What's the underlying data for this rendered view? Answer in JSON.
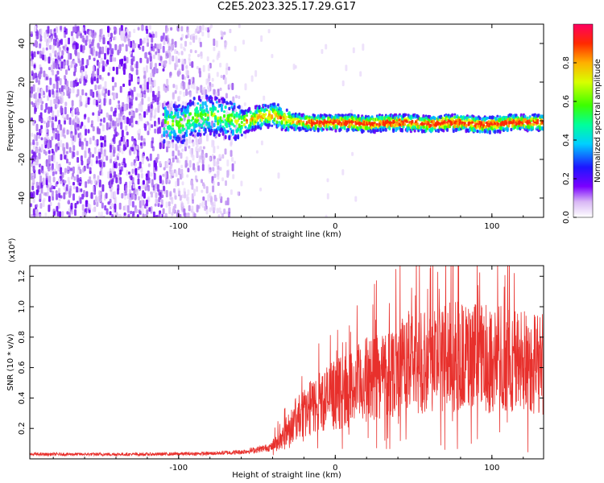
{
  "title": "C2E5.2023.325.17.29.G17",
  "chart_data": [
    {
      "type": "heatmap",
      "xlabel": "Height of straight line (km)",
      "ylabel": "Frequency (Hz)",
      "xlim": [
        -195,
        133
      ],
      "ylim": [
        -50,
        50
      ],
      "xticks": [
        -100,
        0,
        100
      ],
      "xtick_labels": [
        "-100",
        "0",
        "100"
      ],
      "yticks": [
        -40,
        -20,
        0,
        20,
        40
      ],
      "ytick_labels": [
        "-40",
        "-20",
        "0",
        "20",
        "40"
      ],
      "colorbar": {
        "label": "Normalized spectral amplitude",
        "range": [
          0,
          1
        ],
        "ticks": [
          0.0,
          0.2,
          0.4,
          0.6,
          0.8
        ],
        "tick_labels": [
          "0.0",
          "0.2",
          "0.4",
          "0.6",
          "0.8"
        ]
      },
      "ridge_x": [
        -108,
        -100,
        -90,
        -80,
        -70,
        -60,
        -50,
        -40,
        -30,
        -20,
        -10,
        0,
        10,
        20,
        30,
        40,
        50,
        60,
        70,
        80,
        90,
        100,
        110,
        120,
        130
      ],
      "ridge_y": [
        0,
        -1,
        3,
        4,
        2,
        0,
        3,
        4,
        1,
        0,
        0,
        0,
        0,
        -1,
        0,
        0,
        0,
        -1,
        0,
        0,
        -1,
        -1,
        0,
        0,
        0
      ]
    },
    {
      "type": "line",
      "xlabel": "Height of straight line (km)",
      "ylabel": "SNR (10 * v/v)",
      "y_multiplier": "(x10⁴)",
      "xlim": [
        -195,
        133
      ],
      "ylim": [
        0,
        1.27
      ],
      "xticks": [
        -100,
        0,
        100
      ],
      "xtick_labels": [
        "-100",
        "0",
        "100"
      ],
      "yticks": [
        0.2,
        0.4,
        0.6,
        0.8,
        1.0,
        1.2
      ],
      "ytick_labels": [
        "0.2",
        "0.4",
        "0.6",
        "0.8",
        "1.0",
        "1.2"
      ],
      "series_color": "#e8302c",
      "envelope_x": [
        -195,
        -120,
        -80,
        -60,
        -50,
        -40,
        -35,
        -30,
        -25,
        -20,
        -15,
        -10,
        -5,
        0,
        10,
        20,
        30,
        40,
        50,
        60,
        70,
        80,
        90,
        100,
        110,
        120,
        133
      ],
      "envelope_y": [
        0.03,
        0.03,
        0.035,
        0.045,
        0.06,
        0.08,
        0.13,
        0.2,
        0.26,
        0.3,
        0.34,
        0.38,
        0.4,
        0.42,
        0.46,
        0.52,
        0.56,
        0.6,
        0.64,
        0.66,
        0.67,
        0.67,
        0.66,
        0.66,
        0.65,
        0.64,
        0.63
      ]
    }
  ]
}
